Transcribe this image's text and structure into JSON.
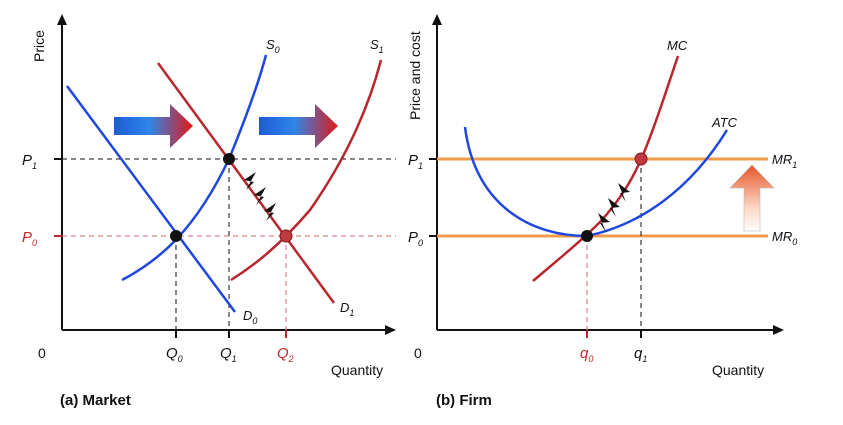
{
  "market": {
    "caption": "(a) Market",
    "y_axis_label": "Price",
    "x_axis_label": "Quantity",
    "origin": "0",
    "p1": {
      "main": "P",
      "sub": "1"
    },
    "p0": {
      "main": "P",
      "sub": "0"
    },
    "q0": {
      "main": "Q",
      "sub": "0"
    },
    "q1": {
      "main": "Q",
      "sub": "1"
    },
    "q2": {
      "main": "Q",
      "sub": "2"
    },
    "s0": {
      "main": "S",
      "sub": "0"
    },
    "s1": {
      "main": "S",
      "sub": "1"
    },
    "d0": {
      "main": "D",
      "sub": "0"
    },
    "d1": {
      "main": "D",
      "sub": "1"
    },
    "colors": {
      "blue_curve": "#1f47e0",
      "red_curve": "#b8262e",
      "shift_arrow_start": "#1e5bd6",
      "shift_arrow_end": "#e01818"
    }
  },
  "firm": {
    "caption": "(b) Firm",
    "y_axis_label": "Price and cost",
    "x_axis_label": "Quantity",
    "origin": "0",
    "p1": {
      "main": "P",
      "sub": "1"
    },
    "p0": {
      "main": "P",
      "sub": "0"
    },
    "q0": {
      "main": "q",
      "sub": "0"
    },
    "q1": {
      "main": "q",
      "sub": "1"
    },
    "mc": "MC",
    "atc": "ATC",
    "mr1": {
      "main": "MR",
      "sub": "1"
    },
    "mr0": {
      "main": "MR",
      "sub": "0"
    },
    "colors": {
      "mr_line": "#f29a4a",
      "atc_curve": "#1f47e0",
      "mc_curve": "#b8262e",
      "up_arrow_top": "#e8552c",
      "up_arrow_bottom": "#ffffff"
    }
  }
}
